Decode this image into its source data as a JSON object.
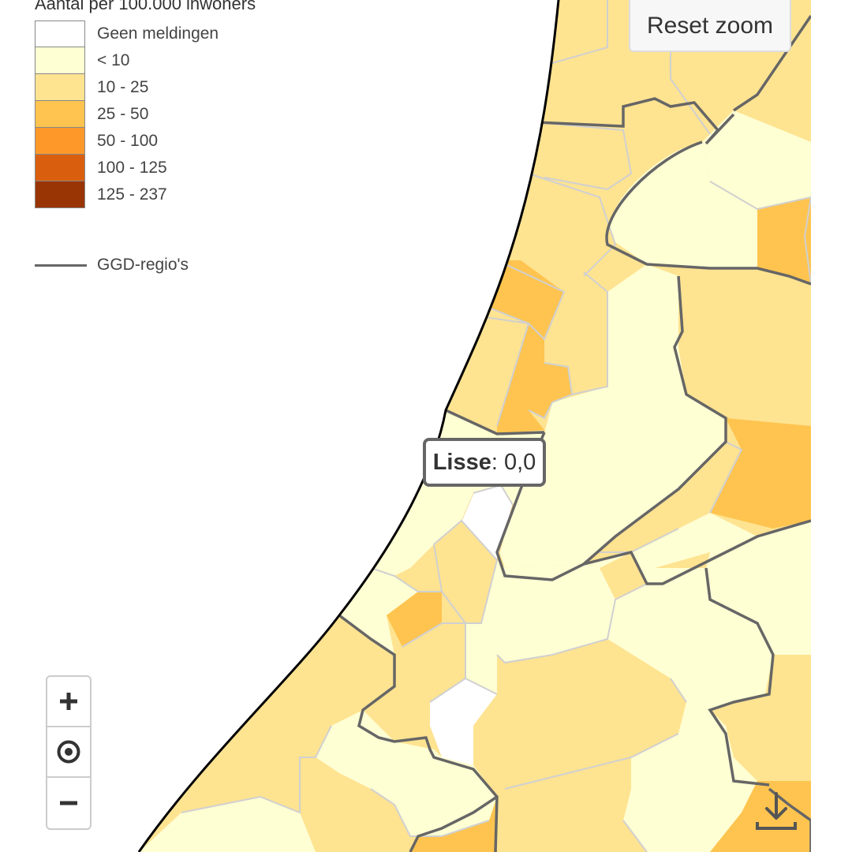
{
  "legend": {
    "title": "Aantal per 100.000 inwoners",
    "classes": [
      {
        "label": "Geen meldingen",
        "color": "#ffffff"
      },
      {
        "label": "< 10",
        "color": "#ffffd4"
      },
      {
        "label": "10 - 25",
        "color": "#fee391"
      },
      {
        "label": "25 - 50",
        "color": "#fec44f"
      },
      {
        "label": "50 - 100",
        "color": "#fe9929"
      },
      {
        "label": "100 - 125",
        "color": "#d95f0e"
      },
      {
        "label": "125 - 237",
        "color": "#993404"
      }
    ],
    "boundary_label": "GGD-regio's"
  },
  "controls": {
    "reset_zoom": "Reset zoom",
    "zoom_in_icon": "plus-icon",
    "locate_icon": "target-icon",
    "zoom_out_icon": "minus-icon",
    "download_icon": "download-icon"
  },
  "tooltip": {
    "name": "Lisse",
    "value": ": 0,0"
  },
  "colors": {
    "boundary": "#666666",
    "municipality_border": "#d0d0d0",
    "coastline": "#000000"
  }
}
